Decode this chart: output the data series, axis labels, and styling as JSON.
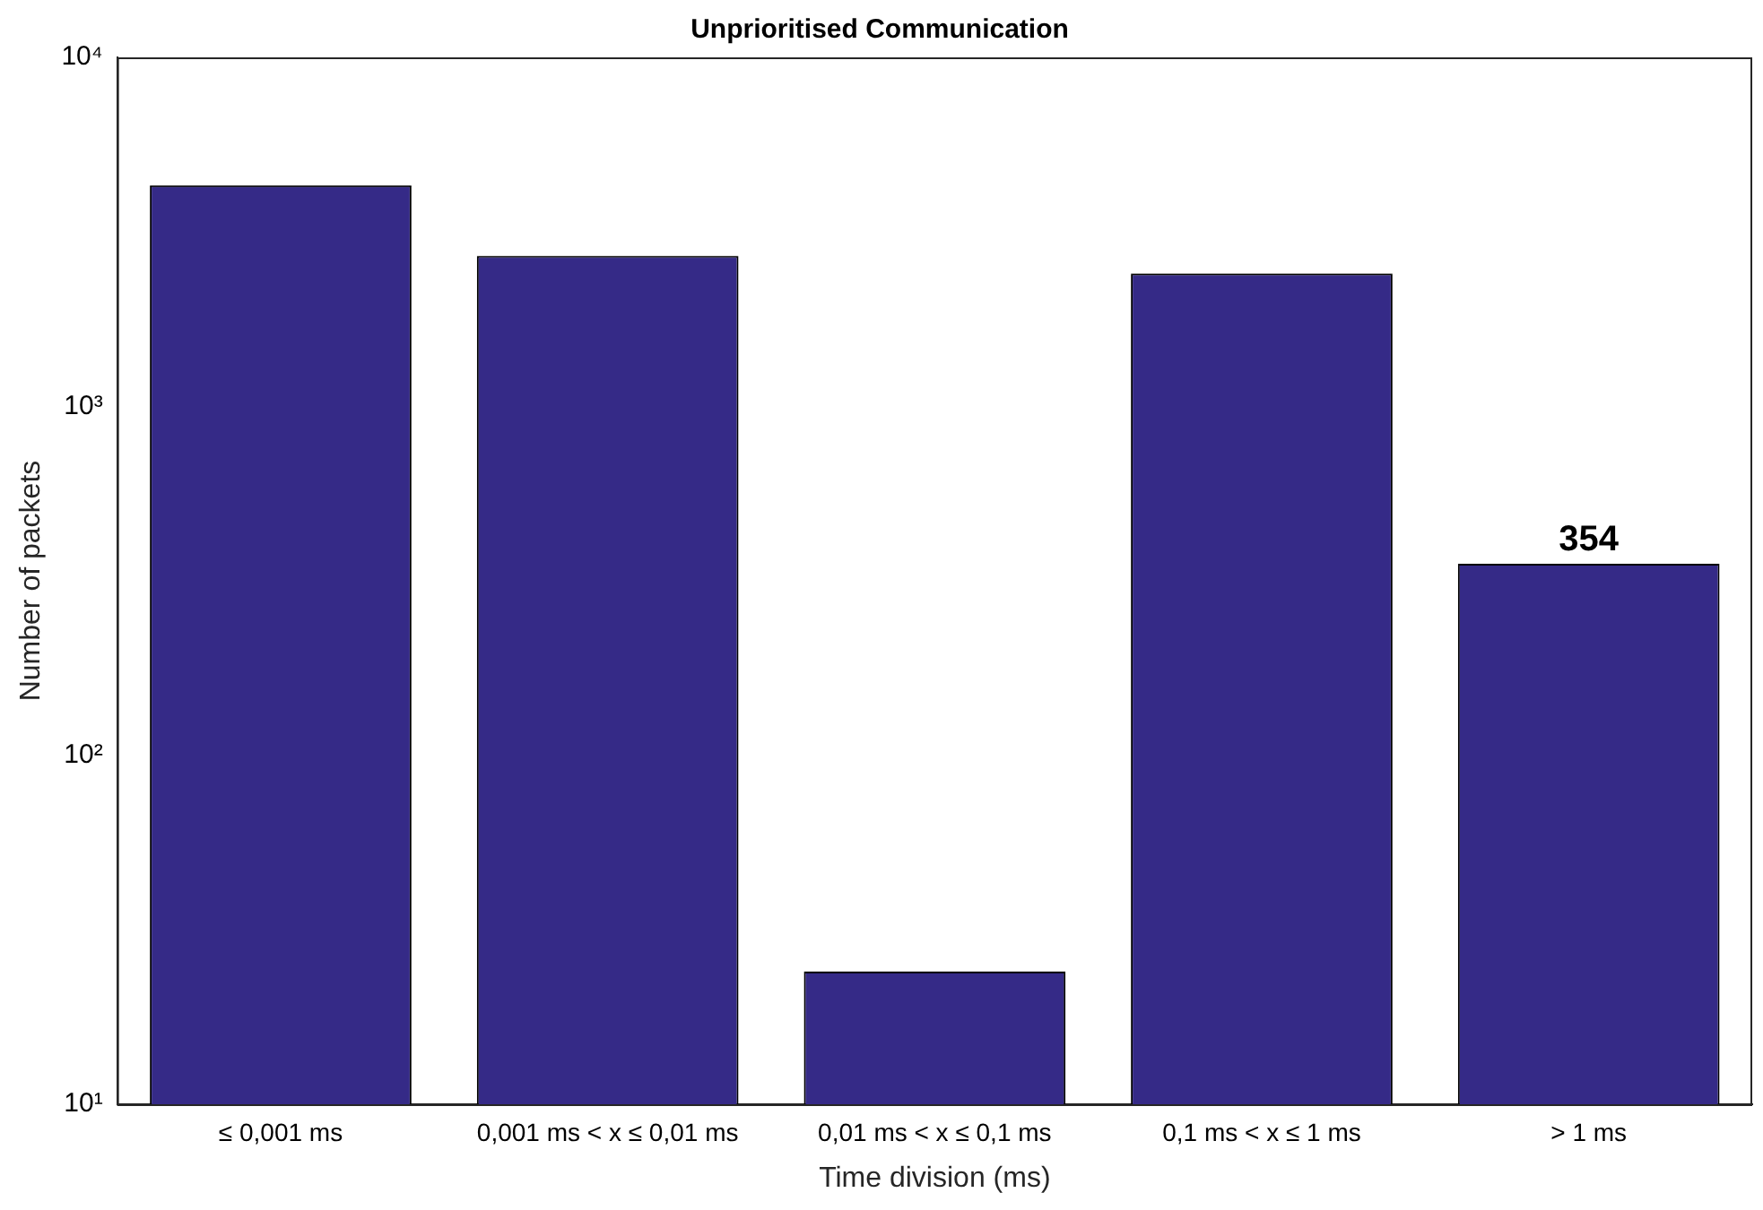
{
  "chart_data": {
    "type": "bar",
    "title": "Unprioritised Communication",
    "xlabel": "Time division (ms)",
    "ylabel": "Number of packets",
    "categories": [
      "≤ 0,001 ms",
      "0,001 ms < x ≤ 0,01 ms",
      "0,01 ms < x ≤ 0,1 ms",
      "0,1 ms < x ≤ 1 ms",
      "> 1 ms"
    ],
    "values": [
      4300,
      2700,
      24,
      2400,
      354
    ],
    "value_labels": [
      null,
      null,
      null,
      null,
      "354"
    ],
    "color": "#352a87",
    "log": "y",
    "ylim": [
      10,
      10000
    ],
    "yticks": [
      {
        "value": 10,
        "label": "10¹"
      },
      {
        "value": 100,
        "label": "10²"
      },
      {
        "value": 1000,
        "label": "10³"
      },
      {
        "value": 10000,
        "label": "10⁴"
      }
    ],
    "grid": false,
    "legend": false
  }
}
